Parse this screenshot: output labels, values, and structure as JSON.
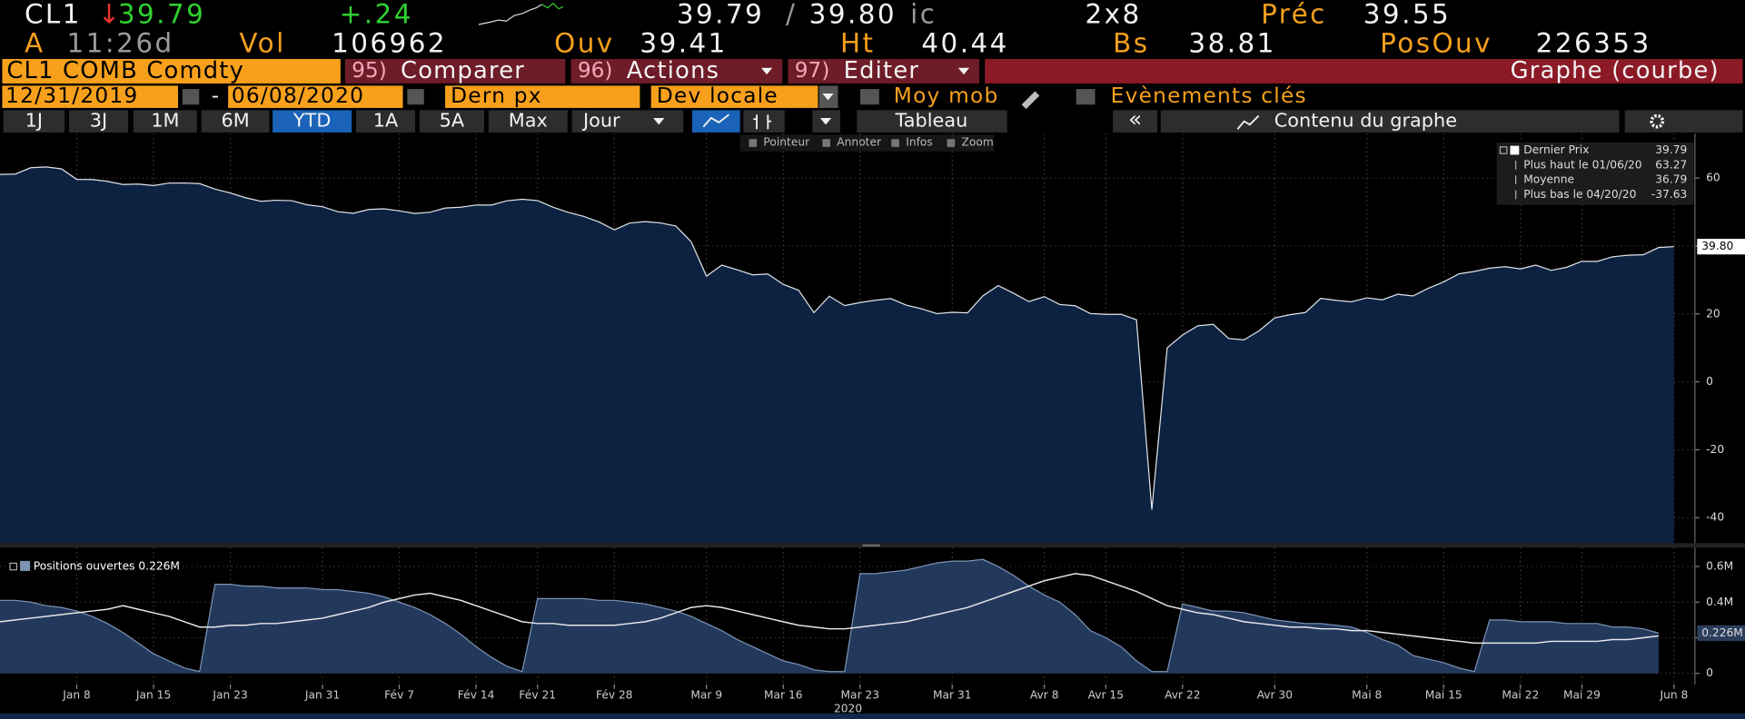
{
  "header": {
    "ticker": "CL1",
    "arrow": "↓",
    "last": "39.79",
    "change": "+.24",
    "bid": "39.79",
    "separator": "/",
    "ask": "39.80",
    "source": "ic",
    "size": "2x8",
    "prev_label": "Préc",
    "prev": "39.55",
    "exchange": "A",
    "time": "11:26d",
    "vol_label": "Vol",
    "vol": "106962",
    "open_label": "Ouv",
    "open": "39.41",
    "high_label": "Ht",
    "high": "40.44",
    "low_label": "Bs",
    "low": "38.81",
    "oi_label": "PosOuv",
    "oi": "226353"
  },
  "menu": {
    "security": "CL1 COMB Comdty",
    "buttons": [
      {
        "number": "95)",
        "label": "Comparer"
      },
      {
        "number": "96)",
        "label": "Actions"
      },
      {
        "number": "97)",
        "label": "Editer"
      }
    ],
    "view": "Graphe (courbe)"
  },
  "controls": {
    "start": "12/31/2019",
    "dash": "-",
    "end": "06/08/2020",
    "field": "Dern px",
    "currency": "Dev locale",
    "moving_avg": "Moy mob",
    "events": "Evènements clés"
  },
  "toolbar": {
    "periods": [
      "1J",
      "3J",
      "1M",
      "6M",
      "YTD",
      "1A",
      "5A",
      "Max"
    ],
    "active": 4,
    "frequency": "Jour",
    "table": "Tableau",
    "back": "«",
    "content": "Contenu du graphe"
  },
  "tools": [
    "Pointeur",
    "Annoter",
    "Infos",
    "Zoom"
  ],
  "chart_data": [
    {
      "type": "area",
      "series": [
        {
          "color": "#0d2240",
          "line_color": "#dfe4ea",
          "values": [
            61.06,
            61.18,
            63.05,
            63.27,
            62.7,
            59.61,
            59.56,
            59.04,
            58.08,
            58.23,
            57.81,
            58.52,
            58.54,
            58.34,
            56.74,
            55.59,
            54.19,
            53.14,
            53.48,
            53.33,
            52.14,
            51.56,
            50.11,
            49.61,
            50.75,
            50.95,
            50.32,
            49.57,
            49.94,
            51.17,
            51.42,
            52.05,
            52.05,
            53.29,
            53.78,
            53.38,
            51.43,
            49.9,
            48.73,
            47.09,
            44.76,
            46.75,
            47.18,
            46.78,
            45.9,
            41.28,
            31.13,
            34.36,
            32.98,
            31.5,
            31.73,
            28.7,
            26.95,
            20.37,
            25.22,
            22.43,
            23.36,
            24.01,
            24.49,
            22.6,
            21.51,
            20.09,
            20.48,
            20.31,
            25.32,
            28.34,
            26.08,
            23.63,
            25.09,
            22.76,
            22.41,
            20.11,
            19.87,
            19.87,
            18.27,
            -37.63,
            10.01,
            13.78,
            16.5,
            16.94,
            12.78,
            12.34,
            15.06,
            18.84,
            19.78,
            20.39,
            24.56,
            23.99,
            23.55,
            24.74,
            24.14,
            25.78,
            25.29,
            27.56,
            29.43,
            31.82,
            32.5,
            33.49,
            33.92,
            33.25,
            34.35,
            32.81,
            33.71,
            35.49,
            35.44,
            36.81,
            37.29,
            37.41,
            39.55,
            39.8
          ]
        }
      ],
      "last_label": "39.80",
      "legend_rows": [
        {
          "label": "Dernier Prix",
          "value": "39.79"
        },
        {
          "label": "Plus haut le 01/06/20",
          "value": "63.27"
        },
        {
          "label": "Moyenne",
          "value": "36.79"
        },
        {
          "label": "Plus bas le 04/20/20",
          "value": "-37.63"
        }
      ],
      "ylim": [
        -47.5,
        73.1
      ],
      "yticks": [
        -40,
        -20,
        0,
        20,
        40,
        60
      ],
      "grid": true,
      "xlim": [
        0,
        110.36
      ],
      "xticks": [
        {
          "value": 5,
          "label": "Jan 8"
        },
        {
          "value": 10,
          "label": "Jan 15"
        },
        {
          "value": 15,
          "label": "Jan 23"
        },
        {
          "value": 21,
          "label": "Jan 31"
        },
        {
          "value": 26,
          "label": "Fév 7"
        },
        {
          "value": 31,
          "label": "Fév 14"
        },
        {
          "value": 35,
          "label": "Fév 21"
        },
        {
          "value": 40,
          "label": "Fév 28"
        },
        {
          "value": 46,
          "label": "Mar 9"
        },
        {
          "value": 51,
          "label": "Mar 16"
        },
        {
          "value": 56,
          "label": "Mar 23"
        },
        {
          "value": 62,
          "label": "Mar 31"
        },
        {
          "value": 68,
          "label": "Avr 8"
        },
        {
          "value": 72,
          "label": "Avr 15"
        },
        {
          "value": 77,
          "label": "Avr 22"
        },
        {
          "value": 83,
          "label": "Avr 30"
        },
        {
          "value": 89,
          "label": "Mai 8"
        },
        {
          "value": 94,
          "label": "Mai 15"
        },
        {
          "value": 99,
          "label": "Mai 22"
        },
        {
          "value": 103,
          "label": "Mai 29"
        },
        {
          "value": 109,
          "label": "Jun 8"
        }
      ]
    },
    {
      "type": "area",
      "xlabel": "2020",
      "series": [
        {
          "name": "Positions ouvertes 0.226M",
          "color": "#22395c",
          "line_color": "#7d93b5",
          "values": [
            0.41,
            0.41,
            0.4,
            0.38,
            0.37,
            0.35,
            0.32,
            0.28,
            0.23,
            0.17,
            0.11,
            0.07,
            0.03,
            0.01,
            0.5,
            0.5,
            0.49,
            0.49,
            0.48,
            0.48,
            0.48,
            0.47,
            0.47,
            0.46,
            0.45,
            0.43,
            0.4,
            0.37,
            0.33,
            0.28,
            0.22,
            0.15,
            0.09,
            0.04,
            0.01,
            0.42,
            0.42,
            0.42,
            0.42,
            0.41,
            0.41,
            0.4,
            0.39,
            0.37,
            0.35,
            0.32,
            0.28,
            0.24,
            0.19,
            0.15,
            0.11,
            0.07,
            0.05,
            0.02,
            0.01,
            0.01,
            0.56,
            0.56,
            0.57,
            0.58,
            0.6,
            0.62,
            0.63,
            0.63,
            0.64,
            0.6,
            0.55,
            0.49,
            0.44,
            0.4,
            0.33,
            0.24,
            0.2,
            0.15,
            0.07,
            0.01,
            0.01,
            0.39,
            0.37,
            0.35,
            0.35,
            0.34,
            0.32,
            0.3,
            0.29,
            0.28,
            0.28,
            0.27,
            0.26,
            0.23,
            0.19,
            0.16,
            0.1,
            0.08,
            0.06,
            0.03,
            0.01,
            0.3,
            0.3,
            0.29,
            0.29,
            0.29,
            0.28,
            0.28,
            0.28,
            0.26,
            0.26,
            0.25,
            0.226
          ]
        },
        {
          "color": "#e8e8e8",
          "values": [
            0.29,
            0.3,
            0.31,
            0.32,
            0.33,
            0.34,
            0.35,
            0.36,
            0.38,
            0.36,
            0.34,
            0.32,
            0.29,
            0.26,
            0.26,
            0.27,
            0.27,
            0.28,
            0.28,
            0.29,
            0.3,
            0.31,
            0.33,
            0.35,
            0.37,
            0.4,
            0.42,
            0.44,
            0.45,
            0.43,
            0.41,
            0.38,
            0.35,
            0.32,
            0.29,
            0.28,
            0.28,
            0.27,
            0.27,
            0.27,
            0.27,
            0.28,
            0.29,
            0.31,
            0.34,
            0.37,
            0.38,
            0.37,
            0.35,
            0.33,
            0.31,
            0.29,
            0.27,
            0.26,
            0.25,
            0.25,
            0.26,
            0.27,
            0.28,
            0.29,
            0.31,
            0.33,
            0.35,
            0.37,
            0.4,
            0.43,
            0.46,
            0.49,
            0.52,
            0.54,
            0.56,
            0.55,
            0.52,
            0.49,
            0.46,
            0.42,
            0.38,
            0.36,
            0.34,
            0.33,
            0.31,
            0.29,
            0.28,
            0.27,
            0.26,
            0.26,
            0.25,
            0.25,
            0.24,
            0.24,
            0.23,
            0.22,
            0.21,
            0.2,
            0.19,
            0.18,
            0.17,
            0.17,
            0.17,
            0.17,
            0.17,
            0.18,
            0.18,
            0.18,
            0.18,
            0.19,
            0.19,
            0.2,
            0.21
          ]
        }
      ],
      "last_label": "0.226M",
      "ylim": [
        -0.0625,
        0.7063
      ],
      "yticks": [
        0,
        {
          "value": 0.2,
          "label": "0.2M"
        },
        {
          "value": 0.4,
          "label": "0.4M"
        },
        {
          "value": 0.6,
          "label": "0.6M"
        }
      ],
      "grid": true
    }
  ]
}
